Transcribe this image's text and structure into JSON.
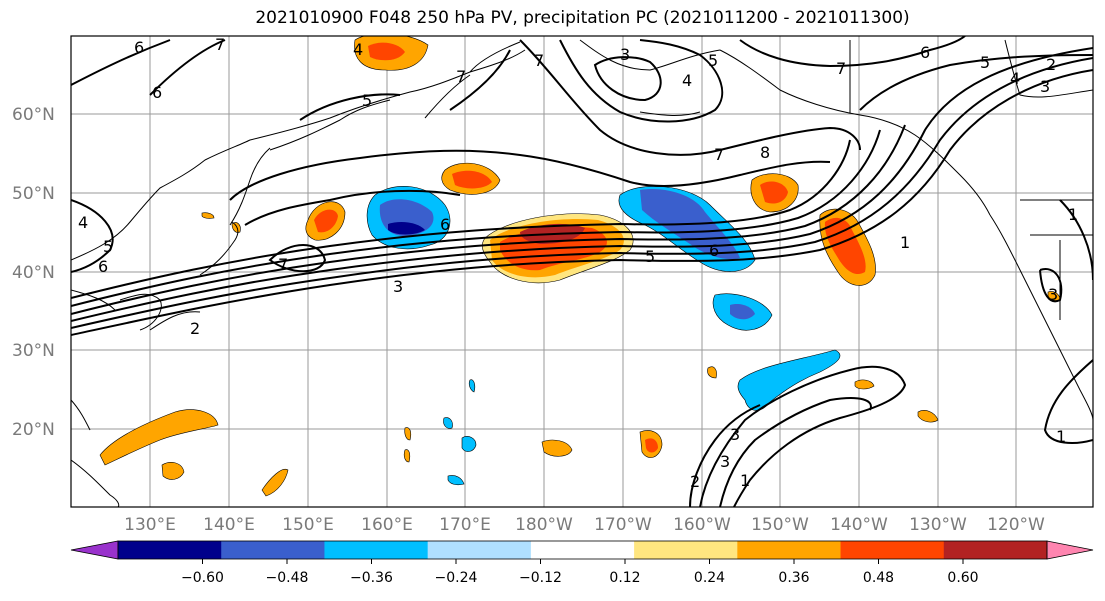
{
  "title": "2021010900 F048 250 hPa PV, precipitation PC (2021011200 - 2021011300)",
  "map": {
    "lat_labels": [
      "60°N",
      "50°N",
      "40°N",
      "30°N",
      "20°N"
    ],
    "lon_labels": [
      "130°E",
      "140°E",
      "150°E",
      "160°E",
      "170°E",
      "180°W",
      "170°W",
      "160°W",
      "150°W",
      "140°W",
      "130°W",
      "120°W"
    ],
    "contour_labels": [
      "6",
      "7",
      "6",
      "5",
      "4",
      "3",
      "2",
      "5",
      "7",
      "7",
      "6",
      "5",
      "4",
      "3",
      "2",
      "1",
      "5",
      "6",
      "7",
      "7",
      "8",
      "6",
      "5",
      "3",
      "2",
      "1",
      "4",
      "5",
      "2",
      "3",
      "1",
      "1",
      "1",
      "5",
      "6",
      "7",
      "6",
      "5",
      "4",
      "3",
      "2",
      "1"
    ]
  },
  "colorbar": {
    "tick_labels": [
      "−0.60",
      "−0.48",
      "−0.36",
      "−0.24",
      "−0.12",
      "0.12",
      "0.24",
      "0.36",
      "0.48",
      "0.60"
    ],
    "colors": [
      "#9932cc",
      "#00008b",
      "#3a5fcd",
      "#00bfff",
      "#b0e0ff",
      "#ffffff",
      "#ffe680",
      "#ffa500",
      "#ff4500",
      "#b22222",
      "#ff85b0"
    ]
  }
}
